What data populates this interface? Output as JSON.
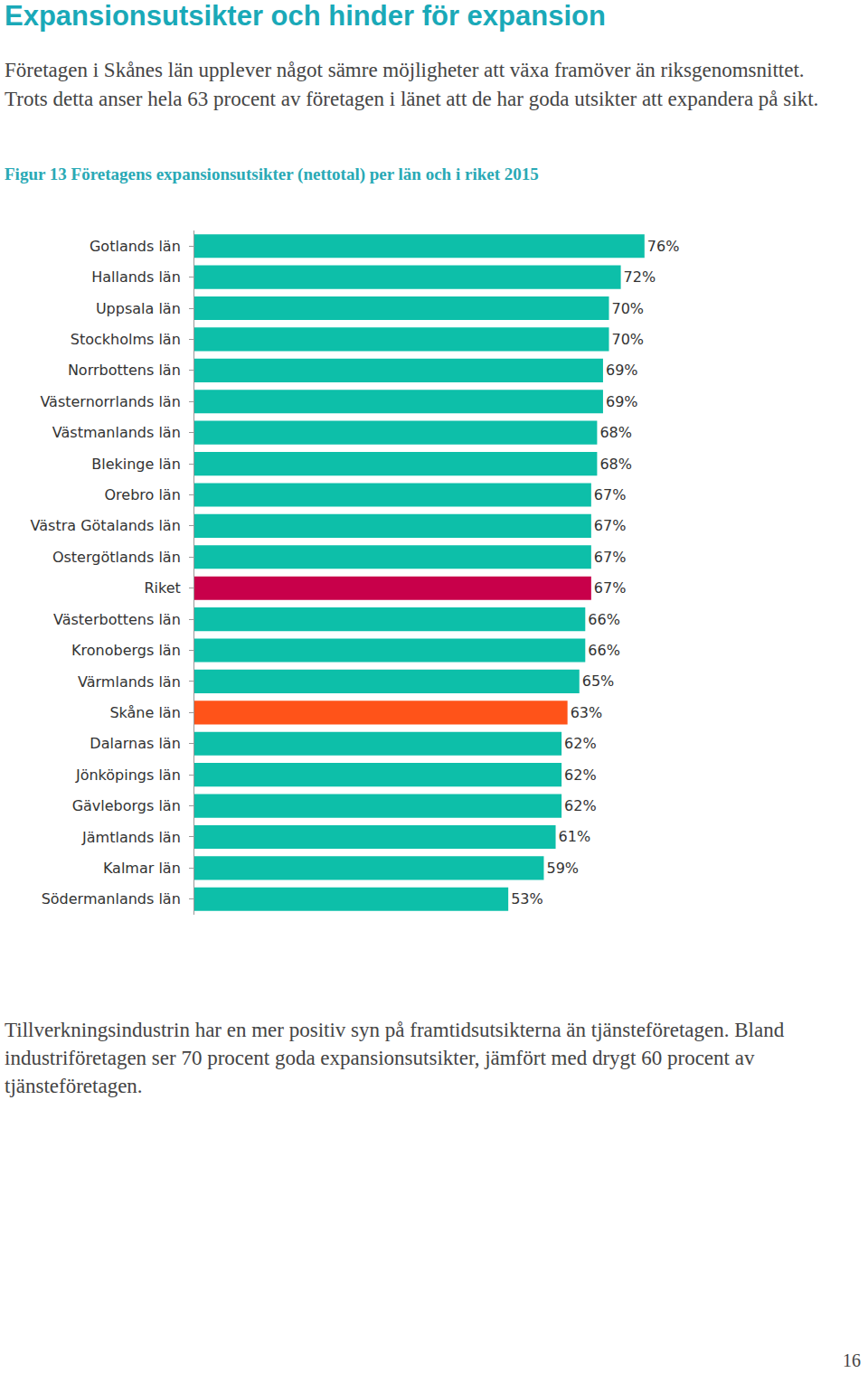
{
  "heading": "Expansionsutsikter och hinder för expansion",
  "intro": "Företagen i Skånes län upplever något sämre möjligheter att växa framöver än riksgenomsnittet. Trots detta anser hela 63 procent av företagen i länet att de har goda utsikter att expandera på sikt.",
  "chart_data": {
    "type": "bar",
    "title": "Figur 13 Företagens expansionsutsikter (nettotal) per län och i riket 2015",
    "orientation": "horizontal",
    "categories": [
      "Gotlands län",
      "Hallands län",
      "Uppsala län",
      "Stockholms län",
      "Norrbottens län",
      "Västernorrlands län",
      "Västmanlands län",
      "Blekinge län",
      "Orebro län",
      "Västra Götalands län",
      "Ostergötlands län",
      "Riket",
      "Västerbottens län",
      "Kronobergs län",
      "Värmlands län",
      "Skåne län",
      "Dalarnas län",
      "Jönköpings län",
      "Gävleborgs län",
      "Jämtlands län",
      "Kalmar län",
      "Södermanlands län"
    ],
    "values": [
      76,
      72,
      70,
      70,
      69,
      69,
      68,
      68,
      67,
      67,
      67,
      67,
      66,
      66,
      65,
      63,
      62,
      62,
      62,
      61,
      59,
      53
    ],
    "value_labels": [
      "76%",
      "72%",
      "70%",
      "70%",
      "69%",
      "69%",
      "68%",
      "68%",
      "67%",
      "67%",
      "67%",
      "67%",
      "66%",
      "66%",
      "65%",
      "63%",
      "62%",
      "62%",
      "62%",
      "61%",
      "59%",
      "53%"
    ],
    "colors": [
      "#0dbfa9",
      "#0dbfa9",
      "#0dbfa9",
      "#0dbfa9",
      "#0dbfa9",
      "#0dbfa9",
      "#0dbfa9",
      "#0dbfa9",
      "#0dbfa9",
      "#0dbfa9",
      "#0dbfa9",
      "#c8004a",
      "#0dbfa9",
      "#0dbfa9",
      "#0dbfa9",
      "#ff5319",
      "#0dbfa9",
      "#0dbfa9",
      "#0dbfa9",
      "#0dbfa9",
      "#0dbfa9",
      "#0dbfa9"
    ],
    "xlim": [
      0,
      100
    ],
    "data_labels": true,
    "tick_labels": "y"
  },
  "closing": "Tillverkningsindustrin har en mer positiv syn på framtidsutsikterna än tjänsteföretagen. Bland industriföretagen ser 70 procent goda expansionsutsikter, jämfört med drygt 60 procent av tjänsteföretagen.",
  "page_number": "16"
}
